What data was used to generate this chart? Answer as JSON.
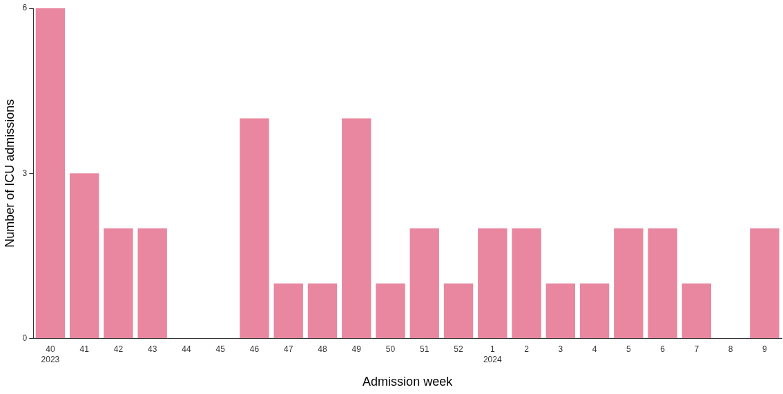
{
  "chart_data": {
    "type": "bar",
    "xlabel": "Admission week",
    "ylabel": "Number of ICU admissions",
    "categories": [
      "40\n2023",
      "41",
      "42",
      "43",
      "44",
      "45",
      "46",
      "47",
      "48",
      "49",
      "50",
      "51",
      "52",
      "1\n2024",
      "2",
      "3",
      "4",
      "5",
      "6",
      "7",
      "8",
      "9"
    ],
    "values": [
      6,
      3,
      2,
      2,
      0,
      0,
      4,
      1,
      1,
      4,
      1,
      2,
      1,
      2,
      2,
      1,
      1,
      2,
      2,
      1,
      0,
      2
    ],
    "color": "#e8879f",
    "ylim": [
      0,
      6
    ],
    "yticks": [
      0,
      3,
      6
    ],
    "grid": false,
    "legend": false
  }
}
